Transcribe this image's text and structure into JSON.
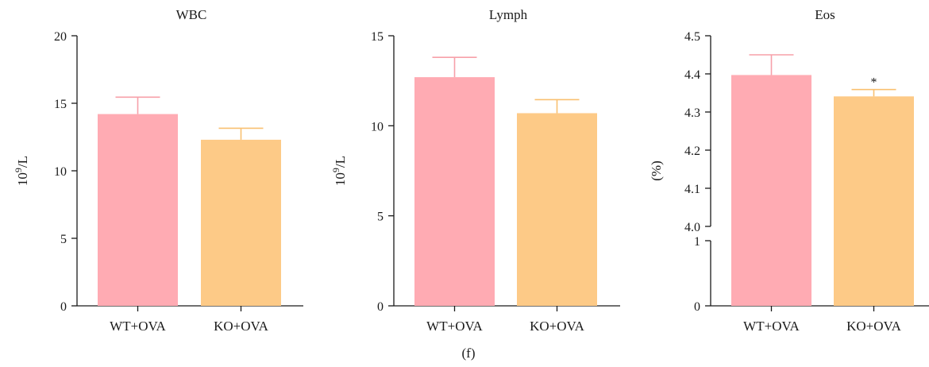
{
  "figure": {
    "caption": "(f)"
  },
  "chart_data": [
    {
      "type": "bar",
      "title": "WBC",
      "ylabel": "10^9/L",
      "ylabel_base": "10",
      "ylabel_exp": "9",
      "ylabel_unit": "/L",
      "categories": [
        "WT+OVA",
        "KO+OVA"
      ],
      "values": [
        14.2,
        12.3
      ],
      "errors": [
        1.25,
        0.85
      ],
      "colors": [
        "#ffabb3",
        "#fdca87"
      ],
      "error_colors": [
        "#f7a0a9",
        "#f9c070"
      ],
      "ylim": [
        0,
        20
      ],
      "yticks": [
        "0",
        "5",
        "10",
        "15",
        "20"
      ],
      "annotations": [
        "",
        ""
      ]
    },
    {
      "type": "bar",
      "title": "Lymph",
      "ylabel": "10^9/L",
      "ylabel_base": "10",
      "ylabel_exp": "9",
      "ylabel_unit": "/L",
      "categories": [
        "WT+OVA",
        "KO+OVA"
      ],
      "values": [
        12.7,
        10.7
      ],
      "errors": [
        1.1,
        0.75
      ],
      "colors": [
        "#ffabb3",
        "#fdca87"
      ],
      "error_colors": [
        "#f7a0a9",
        "#f9c070"
      ],
      "ylim": [
        0,
        15
      ],
      "yticks": [
        "0",
        "5",
        "10",
        "15"
      ],
      "annotations": [
        "",
        ""
      ]
    },
    {
      "type": "bar",
      "title": "Eos",
      "ylabel": "(%)",
      "categories": [
        "WT+OVA",
        "KO+OVA"
      ],
      "values": [
        4.397,
        4.341
      ],
      "errors": [
        0.053,
        0.018
      ],
      "colors": [
        "#ffabb3",
        "#fdca87"
      ],
      "error_colors": [
        "#f7a0a9",
        "#f9c070"
      ],
      "axis_break": true,
      "ylim_lower": [
        0,
        1
      ],
      "ylim_upper": [
        4.0,
        4.5
      ],
      "yticks_lower": [
        "0",
        "1"
      ],
      "yticks_upper": [
        "4.0",
        "4.1",
        "4.2",
        "4.3",
        "4.4",
        "4.5"
      ],
      "annotations": [
        "",
        "*"
      ]
    }
  ]
}
